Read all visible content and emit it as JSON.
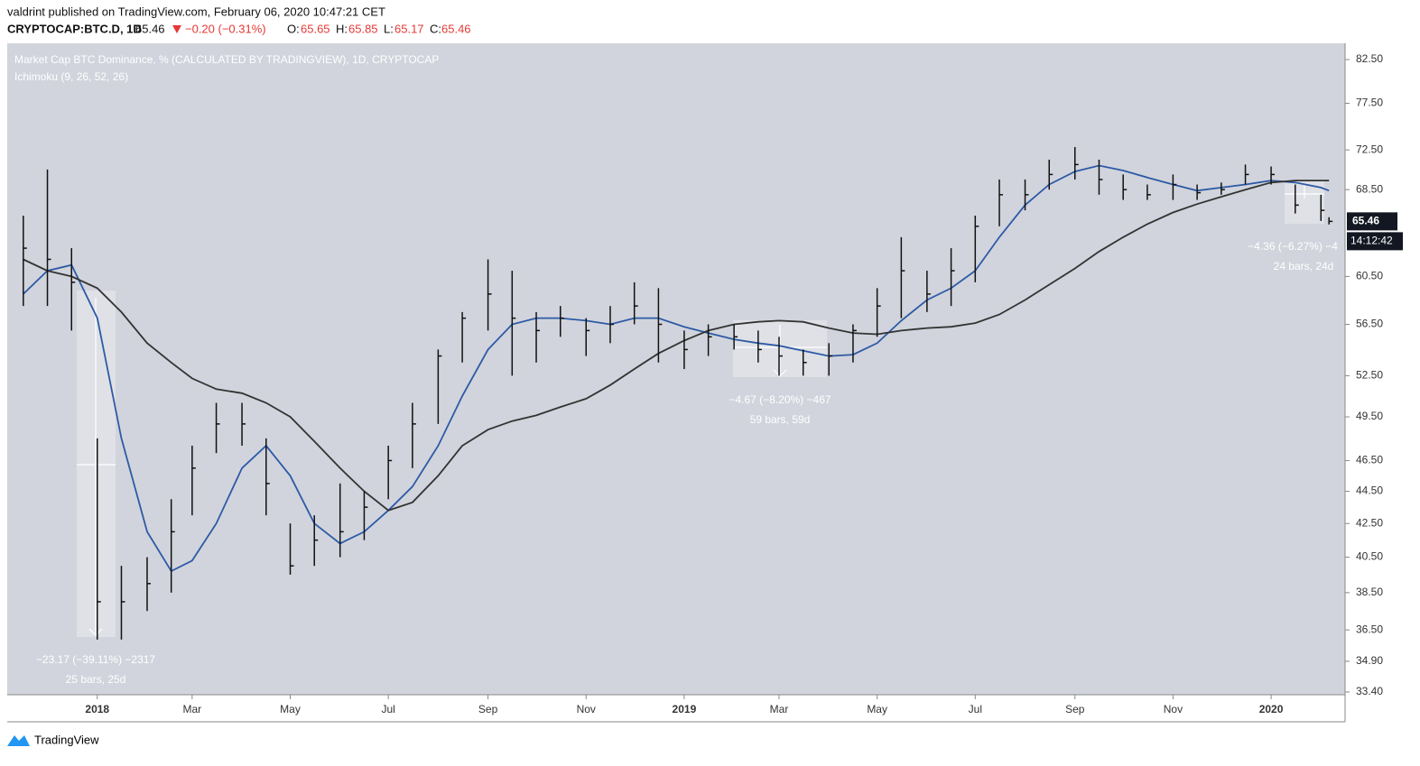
{
  "header": {
    "line1": "valdrint published on TradingView.com, February 06, 2020 10:47:21 CET",
    "symbol": "CRYPTOCAP:BTC.D, 1D",
    "last": "65.46",
    "change": "−0.20 (−0.31%)",
    "o_label": "O:",
    "o": "65.65",
    "h_label": "H:",
    "h": "65.85",
    "l_label": "L:",
    "l": "65.17",
    "c_label": "C:",
    "c": "65.46"
  },
  "chart_data": {
    "type": "ohlc-bars",
    "title": "Market Cap BTC Dominance, % (CALCULATED BY TRADINGVIEW), 1D, CRYPTOCAP",
    "subtitle": "Ichimoku (9, 26, 52, 26)",
    "log_scale": true,
    "background": "#d1d4dc",
    "bar_color": "#111111",
    "xlim": [
      "2017-11-06",
      "2020-02-16"
    ],
    "xticks": [
      {
        "value": "2018-01-01",
        "label": "2018"
      },
      {
        "value": "2018-03-01",
        "label": "Mar"
      },
      {
        "value": "2018-05-01",
        "label": "May"
      },
      {
        "value": "2018-07-01",
        "label": "Jul"
      },
      {
        "value": "2018-09-01",
        "label": "Sep"
      },
      {
        "value": "2018-11-01",
        "label": "Nov"
      },
      {
        "value": "2019-01-01",
        "label": "2019"
      },
      {
        "value": "2019-03-01",
        "label": "Mar"
      },
      {
        "value": "2019-05-01",
        "label": "May"
      },
      {
        "value": "2019-07-01",
        "label": "Jul"
      },
      {
        "value": "2019-09-01",
        "label": "Sep"
      },
      {
        "value": "2019-11-01",
        "label": "Nov"
      },
      {
        "value": "2020-01-01",
        "label": "2020"
      }
    ],
    "ylim": [
      33.27,
      84.44
    ],
    "yticks": [
      {
        "value": 82.5,
        "label": "82.50"
      },
      {
        "value": 77.5,
        "label": "77.50"
      },
      {
        "value": 72.5,
        "label": "72.50"
      },
      {
        "value": 68.5,
        "label": "68.50"
      },
      {
        "value": 60.5,
        "label": "60.50"
      },
      {
        "value": 56.5,
        "label": "56.50"
      },
      {
        "value": 52.5,
        "label": "52.50"
      },
      {
        "value": 49.5,
        "label": "49.50"
      },
      {
        "value": 46.5,
        "label": "46.50"
      },
      {
        "value": 44.5,
        "label": "44.50"
      },
      {
        "value": 42.5,
        "label": "42.50"
      },
      {
        "value": 40.5,
        "label": "40.50"
      },
      {
        "value": 38.5,
        "label": "38.50"
      },
      {
        "value": 36.5,
        "label": "36.50"
      },
      {
        "value": 34.9,
        "label": "34.90"
      },
      {
        "value": 33.4,
        "label": "33.40"
      }
    ],
    "x": [
      "2017-11-16",
      "2017-12-01",
      "2017-12-16",
      "2018-01-01",
      "2018-01-16",
      "2018-02-01",
      "2018-02-16",
      "2018-03-01",
      "2018-03-16",
      "2018-04-01",
      "2018-04-16",
      "2018-05-01",
      "2018-05-16",
      "2018-06-01",
      "2018-06-16",
      "2018-07-01",
      "2018-07-16",
      "2018-08-01",
      "2018-08-16",
      "2018-09-01",
      "2018-09-16",
      "2018-10-01",
      "2018-10-16",
      "2018-11-01",
      "2018-11-16",
      "2018-12-01",
      "2018-12-16",
      "2019-01-01",
      "2019-01-16",
      "2019-02-01",
      "2019-02-16",
      "2019-03-01",
      "2019-03-16",
      "2019-04-01",
      "2019-04-16",
      "2019-05-01",
      "2019-05-16",
      "2019-06-01",
      "2019-06-16",
      "2019-07-01",
      "2019-07-16",
      "2019-08-01",
      "2019-08-16",
      "2019-09-01",
      "2019-09-16",
      "2019-10-01",
      "2019-10-16",
      "2019-11-01",
      "2019-11-16",
      "2019-12-01",
      "2019-12-16",
      "2020-01-01",
      "2020-01-16",
      "2020-02-01",
      "2020-02-06"
    ],
    "high": [
      66,
      70.5,
      63,
      48,
      40,
      40.5,
      44,
      47.5,
      50.5,
      50.5,
      48,
      42.5,
      43,
      45,
      44.5,
      47.5,
      50.5,
      54.5,
      57.5,
      62,
      61,
      57.5,
      58,
      57,
      58,
      60,
      59.5,
      56,
      56.5,
      56.5,
      56,
      55.5,
      54.5,
      55,
      56.5,
      59.5,
      64,
      61,
      63,
      66,
      69.5,
      69.5,
      71.5,
      72.8,
      71.5,
      70,
      69,
      70,
      69,
      69.2,
      71,
      70.8,
      69,
      68,
      65.85
    ],
    "low": [
      58,
      58,
      56,
      36,
      36,
      37.5,
      38.5,
      43,
      47,
      47.5,
      43,
      39.5,
      40,
      40.5,
      41.5,
      44,
      46,
      49,
      53.5,
      56,
      52.5,
      53.5,
      55.5,
      54,
      55,
      56.5,
      53.5,
      53,
      54,
      54.5,
      53.5,
      52.5,
      52.5,
      52.5,
      53.5,
      55.5,
      57,
      57.5,
      58,
      60,
      65,
      66.5,
      68.5,
      69.5,
      68,
      67.5,
      67.5,
      67.5,
      67.5,
      68,
      69,
      69,
      66.2,
      65.5,
      65.17
    ],
    "close": [
      63,
      62,
      60,
      38,
      38,
      39,
      42,
      46,
      49,
      49,
      45,
      40,
      41.5,
      42,
      43.5,
      46.5,
      49,
      54,
      57,
      59,
      57,
      56,
      57,
      56,
      56.5,
      58,
      56.5,
      54.5,
      55.5,
      55.5,
      54.5,
      54,
      53.5,
      54,
      56,
      58,
      61,
      59,
      61,
      65,
      68,
      68,
      70,
      71,
      69.5,
      68.5,
      68,
      69,
      68.2,
      68.5,
      70,
      70,
      67,
      66.5,
      65.46
    ],
    "lines": [
      {
        "color": "#2d5aa6",
        "values": [
          59,
          61,
          61.5,
          57,
          48,
          42,
          39.7,
          40.3,
          42.5,
          46,
          47.5,
          45.5,
          42.5,
          41.3,
          42,
          43.3,
          44.8,
          47.5,
          51,
          54.5,
          56.5,
          57,
          57,
          56.8,
          56.5,
          57,
          57,
          56.3,
          55.8,
          55.3,
          55,
          54.8,
          54.4,
          54,
          54.1,
          55,
          56.8,
          58.5,
          59.5,
          61,
          64,
          67,
          69,
          70.3,
          70.9,
          70.4,
          69.7,
          69,
          68.4,
          68.7,
          69,
          69.4,
          69.2,
          68.7,
          68.4
        ]
      },
      {
        "color": "#333333",
        "values": [
          62,
          61,
          60.5,
          59.5,
          57.5,
          55,
          53.5,
          52.3,
          51.5,
          51.2,
          50.5,
          49.5,
          47.8,
          46,
          44.5,
          43.3,
          43.8,
          45.5,
          47.5,
          48.6,
          49.2,
          49.6,
          50.2,
          50.8,
          51.8,
          53,
          54.2,
          55.2,
          56,
          56.5,
          56.7,
          56.8,
          56.7,
          56.2,
          55.8,
          55.7,
          56,
          56.2,
          56.3,
          56.6,
          57.3,
          58.5,
          59.8,
          61.2,
          62.7,
          64,
          65.2,
          66.3,
          67.1,
          67.8,
          68.5,
          69.2,
          69.4,
          69.4,
          69.4
        ]
      }
    ],
    "last_price": {
      "value": 65.46,
      "label": "65.46"
    },
    "countdown": "14:12:42",
    "annotations": [
      {
        "change": "−23.17 (−39.11%) −2317",
        "span": "25 bars, 25d"
      },
      {
        "change": "−4.67 (−8.20%) −467",
        "span": "59 bars, 59d"
      },
      {
        "change": "−4.36 (−6.27%) −4",
        "span": "24 bars, 24d"
      }
    ]
  },
  "footer": {
    "brand": "TradingView"
  }
}
